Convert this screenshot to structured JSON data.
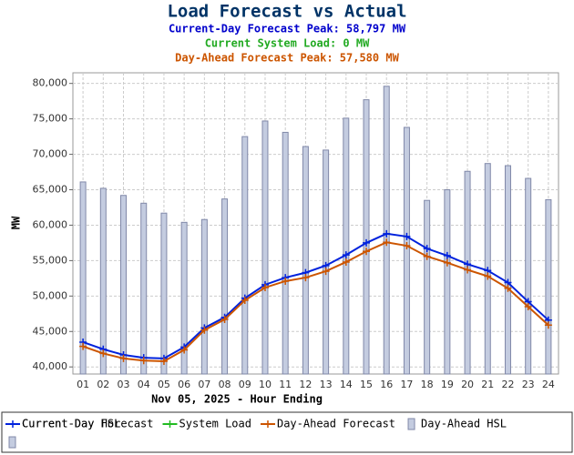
{
  "chart_data": {
    "type": "bar-line",
    "title": "Load Forecast vs Actual",
    "subtitles": [
      {
        "text": "Current-Day Forecast Peak:  58,797 MW",
        "color": "#0000cc"
      },
      {
        "text": "Current System Load:  0 MW",
        "color": "#22aa22"
      },
      {
        "text": "Day-Ahead Forecast Peak:  57,580 MW",
        "color": "#cc5500"
      }
    ],
    "xlabel": "Nov 05, 2025 - Hour Ending",
    "ylabel": "MW",
    "categories": [
      "01",
      "02",
      "03",
      "04",
      "05",
      "06",
      "07",
      "08",
      "09",
      "10",
      "11",
      "12",
      "13",
      "14",
      "15",
      "16",
      "17",
      "18",
      "19",
      "20",
      "21",
      "22",
      "23",
      "24"
    ],
    "ylim": [
      39000,
      81500
    ],
    "yticks": [
      {
        "value": 40000,
        "label": "40,000"
      },
      {
        "value": 45000,
        "label": "45,000"
      },
      {
        "value": 50000,
        "label": "50,000"
      },
      {
        "value": 55000,
        "label": "55,000"
      },
      {
        "value": 60000,
        "label": "60,000"
      },
      {
        "value": 65000,
        "label": "65,000"
      },
      {
        "value": 70000,
        "label": "70,000"
      },
      {
        "value": 75000,
        "label": "75,000"
      },
      {
        "value": 80000,
        "label": "80,000"
      }
    ],
    "grid": true,
    "series": [
      {
        "name": "Current-Day Forecast",
        "kind": "line",
        "color": "#0022dd",
        "values": [
          43500,
          42500,
          41700,
          41300,
          41200,
          42800,
          45500,
          47000,
          49700,
          51600,
          52600,
          53300,
          54300,
          55800,
          57500,
          58797,
          58400,
          56700,
          55700,
          54500,
          53600,
          51900,
          49200,
          46600
        ]
      },
      {
        "name": "System Load",
        "kind": "line",
        "color": "#22bb22",
        "values": [
          null,
          null,
          null,
          null,
          null,
          null,
          null,
          null,
          null,
          null,
          null,
          null,
          null,
          null,
          null,
          null,
          null,
          null,
          null,
          null,
          null,
          null,
          null,
          null
        ]
      },
      {
        "name": "Day-Ahead Forecast",
        "kind": "line",
        "color": "#cc5500",
        "values": [
          42900,
          41900,
          41200,
          40900,
          40800,
          42400,
          45200,
          46700,
          49400,
          51200,
          52100,
          52600,
          53500,
          54800,
          56300,
          57580,
          57100,
          55600,
          54700,
          53700,
          52800,
          51100,
          48500,
          45900
        ]
      },
      {
        "name": "Day-Ahead HSL",
        "kind": "bar",
        "color": "#c4cce0",
        "values": [
          66100,
          65200,
          64200,
          63100,
          61700,
          60400,
          60800,
          63700,
          72500,
          74700,
          73100,
          71100,
          70600,
          75100,
          77700,
          79600,
          73800,
          63500,
          65000,
          67600,
          68700,
          68400,
          66600,
          63600
        ]
      },
      {
        "name": "Current-Day HSL",
        "kind": "bar",
        "color": "#c4cce0",
        "values": [
          null,
          null,
          null,
          null,
          null,
          null,
          null,
          null,
          null,
          null,
          null,
          null,
          null,
          null,
          null,
          null,
          null,
          null,
          null,
          null,
          null,
          null,
          null,
          null
        ]
      }
    ]
  }
}
